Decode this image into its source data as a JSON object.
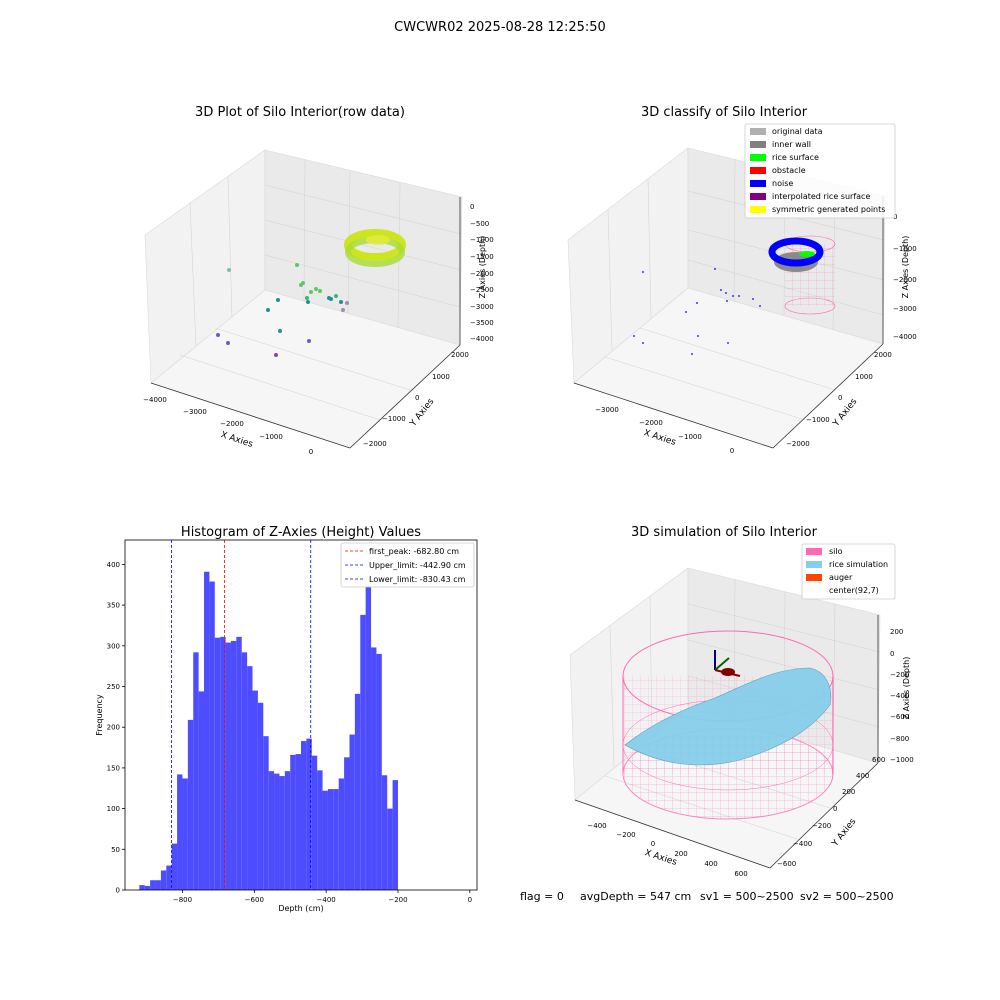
{
  "suptitle": "CWCWR02 2025-08-28 12:25:50",
  "footer": {
    "flag": "flag = 0",
    "avg_depth": "avgDepth = 547 cm",
    "sv1": "sv1 = 500~2500",
    "sv2": "sv2 = 500~2500"
  },
  "chart_data": [
    {
      "type": "scatter",
      "title": "3D Plot of Silo Interior(row data)",
      "xlabel": "X Axies",
      "ylabel": "Y Axies",
      "zlabel": "Z Axies (Depth)",
      "x_ticks": [
        "−4000",
        "−3000",
        "−2000",
        "−1000",
        "0"
      ],
      "y_ticks": [
        "−2000",
        "−1000",
        "0",
        "1000",
        "2000"
      ],
      "z_ticks": [
        "0",
        "−500",
        "−1000",
        "−1500",
        "−2000",
        "−2500",
        "−3000",
        "−3500",
        "−4000"
      ],
      "colors": {
        "points_high": "#d4e61c",
        "points_mid": "#5ec962",
        "points_teal": "#21918c",
        "points_low": "#6a3d9a"
      }
    },
    {
      "type": "scatter",
      "title": "3D classify of Silo Interior",
      "xlabel": "X Axies",
      "ylabel": "Y Axies",
      "zlabel": "Z Axies (Depth)",
      "x_ticks": [
        "−3000",
        "−2000",
        "−1000",
        "0"
      ],
      "y_ticks": [
        "−2000",
        "−1000",
        "0",
        "1000",
        "2000"
      ],
      "z_ticks": [
        "0",
        "−1000",
        "−2000",
        "−3000",
        "−4000"
      ],
      "legend": [
        {
          "label": "original data",
          "color": "#b0b0b0"
        },
        {
          "label": "inner wall",
          "color": "#808080"
        },
        {
          "label": "rice surface",
          "color": "#00ff00"
        },
        {
          "label": "obstacle",
          "color": "#ff0000"
        },
        {
          "label": "noise",
          "color": "#0000ff"
        },
        {
          "label": "interpolated rice surface",
          "color": "#800080"
        },
        {
          "label": "symmetric generated points",
          "color": "#ffff00"
        }
      ]
    },
    {
      "type": "bar",
      "title": "Histogram of Z-Axies (Height) Values",
      "xlabel": "Depth (cm)",
      "ylabel": "Frequency",
      "xlim": [
        -960,
        20
      ],
      "ylim": [
        0,
        430
      ],
      "bar_color": "#4d4dff",
      "x_ticks": [
        {
          "v": -800,
          "label": "−800"
        },
        {
          "v": -600,
          "label": "−600"
        },
        {
          "v": -400,
          "label": "−400"
        },
        {
          "v": -200,
          "label": "−200"
        },
        {
          "v": 0,
          "label": "0"
        }
      ],
      "y_ticks": [
        0,
        50,
        100,
        150,
        200,
        250,
        300,
        350,
        400
      ],
      "bin_start": -920,
      "bin_width": 15,
      "values": [
        6,
        5,
        12,
        12,
        24,
        30,
        57,
        142,
        137,
        209,
        292,
        244,
        391,
        379,
        310,
        311,
        304,
        306,
        311,
        292,
        275,
        245,
        230,
        189,
        146,
        143,
        140,
        146,
        166,
        167,
        183,
        186,
        165,
        147,
        122,
        124,
        124,
        137,
        163,
        191,
        241,
        338,
        413,
        298,
        290,
        141,
        100,
        135
      ],
      "lines": [
        {
          "label": "first_peak: -682.80 cm",
          "x": -682.8,
          "color": "#ff0000"
        },
        {
          "label": "Upper_limit: -442.90 cm",
          "x": -442.9,
          "color": "#0000ff"
        },
        {
          "label": "Lower_limit: -830.43 cm",
          "x": -830.43,
          "color": "#0000ff"
        }
      ]
    },
    {
      "type": "scatter",
      "title": "3D simulation of Silo Interior",
      "xlabel": "X Axies",
      "ylabel": "Y Axies",
      "zlabel": "Z Axies (Depth)",
      "x_ticks": [
        "−400",
        "−200",
        "0",
        "200",
        "400",
        "600"
      ],
      "y_ticks": [
        "−600",
        "−400",
        "−200",
        "0",
        "200",
        "400",
        "600"
      ],
      "z_ticks": [
        "200",
        "0",
        "−200",
        "−400",
        "−600",
        "−800",
        "−1000"
      ],
      "legend": [
        {
          "label": "silo",
          "color": "#ff69b4"
        },
        {
          "label": "rice simulation",
          "color": "#87ceeb"
        },
        {
          "label": "auger",
          "color": "#ff4500"
        },
        {
          "label": "center(92,7)",
          "color": ""
        }
      ]
    }
  ]
}
